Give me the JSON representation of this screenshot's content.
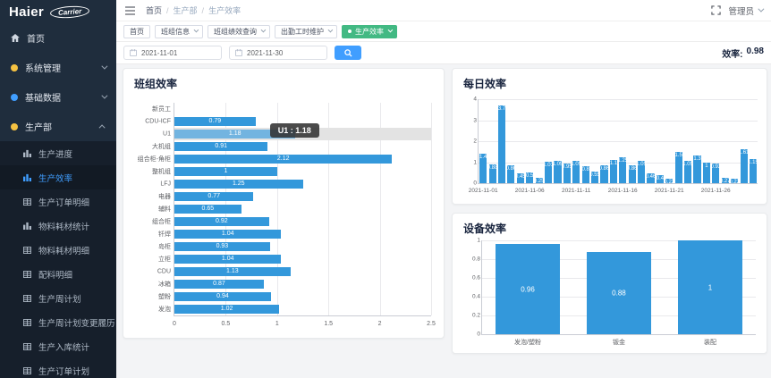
{
  "sidebar": {
    "logo": {
      "brand": "Haier",
      "badge": "Carrier"
    },
    "menu": [
      {
        "id": "home",
        "label": "首页",
        "icon": "home"
      },
      {
        "id": "system",
        "label": "系统管理",
        "icon": "dot",
        "dot_color": "#f5c242",
        "caret": "down"
      },
      {
        "id": "basedata",
        "label": "基础数据",
        "icon": "dot",
        "dot_color": "#409eff",
        "caret": "down"
      },
      {
        "id": "production",
        "label": "生产部",
        "icon": "dot",
        "dot_color": "#f5c242",
        "caret": "up",
        "expanded": true,
        "children": [
          {
            "id": "progress",
            "label": "生产进度",
            "icon": "bar-chart"
          },
          {
            "id": "efficiency",
            "label": "生产效率",
            "icon": "bar-chart",
            "active": true
          },
          {
            "id": "order-detail",
            "label": "生产订单明细",
            "icon": "table"
          },
          {
            "id": "material-stat",
            "label": "物料耗材统计",
            "icon": "bar-chart"
          },
          {
            "id": "material-detail",
            "label": "物料耗材明细",
            "icon": "table"
          },
          {
            "id": "ingredient-detail",
            "label": "配料明细",
            "icon": "table"
          },
          {
            "id": "week-plan",
            "label": "生产周计划",
            "icon": "table"
          },
          {
            "id": "week-plan-history",
            "label": "生产周计划变更履历",
            "icon": "table"
          },
          {
            "id": "warehouse-stat",
            "label": "生产入库统计",
            "icon": "table"
          },
          {
            "id": "order-plan",
            "label": "生产订单计划",
            "icon": "table"
          }
        ]
      }
    ]
  },
  "header": {
    "breadcrumb": [
      "首页",
      "生产部",
      "生产效率"
    ],
    "breadcrumb_separator": "/",
    "user": "管理员"
  },
  "tabs": [
    {
      "label": "首页"
    },
    {
      "label": "班组信息",
      "caret": true
    },
    {
      "label": "班组绩效查询",
      "caret": true
    },
    {
      "label": "出勤工时维护",
      "caret": true
    },
    {
      "label": "生产效率",
      "caret": true,
      "active": true
    }
  ],
  "filters": {
    "date_from": "2021-11-01",
    "date_to": "2021-11-30",
    "efficiency_label": "效率:",
    "efficiency_value": "0.98"
  },
  "chart_data": [
    {
      "id": "team",
      "type": "bar",
      "orientation": "horizontal",
      "title": "班组效率",
      "categories": [
        "新员工",
        "CDU-ICF",
        "U1",
        "大机组",
        "组合柜-角柜",
        "整机组",
        "LFJ",
        "电器",
        "辅料",
        "组合柜",
        "钎焊",
        "岛柜",
        "立柜",
        "CDU",
        "冰箱",
        "塑粉",
        "发泡"
      ],
      "values": [
        0,
        0.79,
        1.18,
        0.91,
        2.12,
        1,
        1.25,
        0.77,
        0.65,
        0.92,
        1.04,
        0.93,
        1.04,
        1.13,
        0.87,
        0.94,
        1.02
      ],
      "xlim": [
        0,
        2.5
      ],
      "xticks": [
        0,
        0.5,
        1,
        1.5,
        2,
        2.5
      ],
      "grid": true,
      "bar_color": "#3398db",
      "highlight": {
        "category": "U1",
        "tooltip": "U1 : 1.18"
      }
    },
    {
      "id": "daily",
      "type": "bar",
      "title": "每日效率",
      "x": [
        "2021-11-01",
        "2021-11-02",
        "2021-11-03",
        "2021-11-04",
        "2021-11-05",
        "2021-11-06",
        "2021-11-07",
        "2021-11-08",
        "2021-11-09",
        "2021-11-10",
        "2021-11-11",
        "2021-11-12",
        "2021-11-13",
        "2021-11-14",
        "2021-11-15",
        "2021-11-16",
        "2021-11-17",
        "2021-11-18",
        "2021-11-19",
        "2021-11-20",
        "2021-11-21",
        "2021-11-22",
        "2021-11-23",
        "2021-11-24",
        "2021-11-25",
        "2021-11-26",
        "2021-11-27",
        "2021-11-28",
        "2021-11-29",
        "2021-11-30"
      ],
      "values": [
        1.4,
        0.88,
        3.7,
        0.86,
        0.45,
        0.5,
        0.25,
        1.01,
        1.05,
        0.95,
        1.05,
        0.8,
        0.55,
        0.86,
        1.1,
        1.25,
        0.86,
        1.05,
        0.46,
        0.4,
        0.22,
        1.5,
        1.05,
        1.3,
        1,
        0.92,
        0.27,
        0.22,
        1.61,
        1.15
      ],
      "ylim": [
        0,
        4
      ],
      "yticks": [
        0,
        1,
        2,
        3,
        4
      ],
      "xticks_shown": [
        "2021-11-01",
        "2021-11-06",
        "2021-11-11",
        "2021-11-16",
        "2021-11-21",
        "2021-11-26"
      ],
      "grid": true,
      "bar_color": "#3398db"
    },
    {
      "id": "equipment",
      "type": "bar",
      "title": "设备效率",
      "categories": [
        "发泡/塑粉",
        "钣金",
        "装配"
      ],
      "values": [
        0.96,
        0.88,
        1
      ],
      "ylim": [
        0,
        1
      ],
      "yticks": [
        0,
        0.2,
        0.4,
        0.6,
        0.8,
        1
      ],
      "grid": true,
      "bar_color": "#3398db"
    }
  ]
}
